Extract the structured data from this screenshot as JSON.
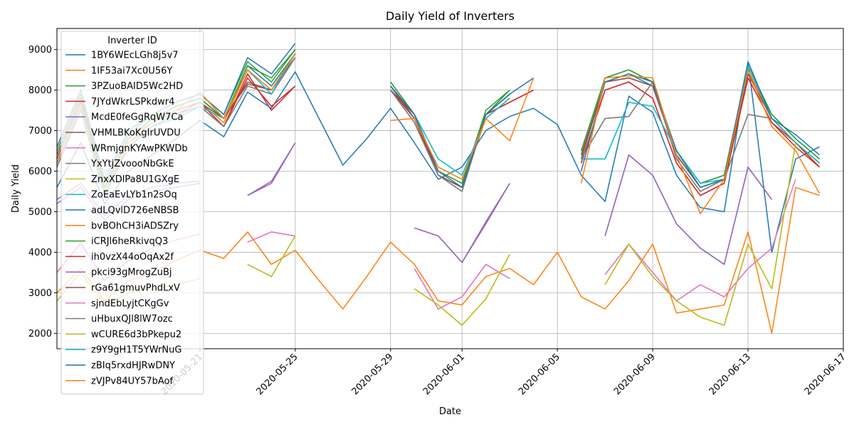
{
  "chart_data": {
    "type": "line",
    "title": "Daily Yield of Inverters",
    "xlabel": "Date",
    "ylabel": "Daily Yield",
    "xlim": [
      "2020-05-15",
      "2020-06-17"
    ],
    "ylim": [
      1620,
      9520
    ],
    "xticks": [
      "2020-05-21",
      "2020-05-25",
      "2020-05-29",
      "2020-06-01",
      "2020-06-05",
      "2020-06-09",
      "2020-06-13",
      "2020-06-17"
    ],
    "yticks": [
      2000,
      3000,
      4000,
      5000,
      6000,
      7000,
      8000,
      9000
    ],
    "grid": true,
    "legend_title": "Inverter ID",
    "legend_position": "upper-left",
    "colors": [
      "#1f77b4",
      "#ff7f0e",
      "#2ca02c",
      "#d62728",
      "#9467bd",
      "#8c564b",
      "#e377c2",
      "#7f7f7f",
      "#bcbd22",
      "#17becf"
    ],
    "dates": [
      "2020-05-15",
      "2020-05-16",
      "2020-05-17",
      "2020-05-18",
      "2020-05-19",
      "2020-05-20",
      "2020-05-21",
      "2020-05-22",
      "2020-05-23",
      "2020-05-24",
      "2020-05-25",
      "2020-05-26",
      "2020-05-27",
      "2020-05-28",
      "2020-05-29",
      "2020-05-30",
      "2020-05-31",
      "2020-06-01",
      "2020-06-02",
      "2020-06-03",
      "2020-06-04",
      "2020-06-05",
      "2020-06-06",
      "2020-06-07",
      "2020-06-08",
      "2020-06-09",
      "2020-06-10",
      "2020-06-11",
      "2020-06-12",
      "2020-06-13",
      "2020-06-14",
      "2020-06-15",
      "2020-06-16"
    ],
    "series": [
      {
        "name": "1BY6WEcLGh8j5v7",
        "values": [
          6400,
          7800,
          5600,
          6800,
          7300,
          7600,
          7800,
          7300,
          8600,
          8100,
          8900,
          null,
          6700,
          null,
          8100,
          7300,
          5900,
          5600,
          7400,
          7900,
          null,
          null,
          6400,
          8200,
          8400,
          8100,
          6400,
          5600,
          5800,
          8500,
          7300,
          6700,
          6200
        ]
      },
      {
        "name": "1IF53ai7Xc0U56Y",
        "values": [
          6300,
          7700,
          5500,
          6700,
          7200,
          7500,
          7700,
          7200,
          8500,
          8000,
          8800,
          null,
          6600,
          null,
          8000,
          7200,
          5900,
          5600,
          7300,
          7800,
          null,
          null,
          6300,
          8200,
          8400,
          8200,
          6300,
          5500,
          5800,
          8500,
          7300,
          6700,
          6100
        ]
      },
      {
        "name": "3PZuoBAID5Wc2HD",
        "values": [
          6500,
          7900,
          5700,
          6900,
          7400,
          7700,
          7900,
          7400,
          8700,
          8200,
          9000,
          null,
          6800,
          null,
          8200,
          7400,
          6000,
          5700,
          7500,
          8000,
          null,
          null,
          6500,
          8300,
          8500,
          8200,
          6500,
          5700,
          5900,
          8600,
          7400,
          6800,
          6300
        ]
      },
      {
        "name": "7JYdWkrLSPkdwr4",
        "values": [
          6200,
          7600,
          5400,
          6600,
          7100,
          7400,
          7600,
          7100,
          8400,
          7500,
          8100,
          null,
          6600,
          null,
          8000,
          7400,
          5900,
          5600,
          7400,
          7700,
          8000,
          null,
          6200,
          8000,
          8200,
          7800,
          6200,
          5400,
          5700,
          8300,
          7200,
          6600,
          6100
        ]
      },
      {
        "name": "McdE0feGgRqW7Ca",
        "values": [
          5200,
          5600,
          4800,
          5300,
          5500,
          5600,
          5700,
          null,
          5400,
          5750,
          6700,
          null,
          null,
          null,
          null,
          4600,
          4400,
          3750,
          4750,
          5700,
          null,
          null,
          null,
          4400,
          6400,
          5900,
          4700,
          4100,
          3700,
          6100,
          5300,
          null,
          null
        ]
      },
      {
        "name": "VHMLBKoKgIrUVDU",
        "values": [
          6300,
          7700,
          5600,
          6800,
          7300,
          7600,
          7800,
          7300,
          8200,
          8000,
          8900,
          null,
          6700,
          null,
          8100,
          7300,
          5900,
          5600,
          7400,
          7900,
          null,
          null,
          6400,
          8200,
          8300,
          8100,
          6400,
          5600,
          5800,
          8400,
          7300,
          6700,
          6200
        ]
      },
      {
        "name": "WRmjgnKYAwPKWDb",
        "values": [
          3500,
          4200,
          3300,
          3800,
          4100,
          4300,
          4450,
          null,
          4250,
          4500,
          4400,
          null,
          null,
          null,
          null,
          3600,
          2600,
          2900,
          3700,
          3350,
          null,
          null,
          null,
          3450,
          4200,
          3500,
          2800,
          3200,
          2900,
          3600,
          4100,
          null,
          null
        ]
      },
      {
        "name": "YxYtjZvoooNbGkE",
        "values": [
          6100,
          7500,
          5400,
          6600,
          7100,
          7400,
          7600,
          7100,
          8100,
          7900,
          8800,
          null,
          6600,
          null,
          8000,
          7200,
          5900,
          5500,
          7400,
          7900,
          null,
          null,
          6300,
          7300,
          7350,
          8200,
          6300,
          5500,
          5800,
          7400,
          7300,
          6700,
          6200
        ]
      },
      {
        "name": "ZnxXDlPa8U1GXgE",
        "values": [
          2800,
          3500,
          2700,
          3000,
          3100,
          3200,
          3350,
          null,
          3700,
          3400,
          4400,
          null,
          null,
          null,
          null,
          3100,
          2700,
          2200,
          2850,
          3950,
          null,
          null,
          null,
          3200,
          4200,
          3400,
          2800,
          2400,
          2200,
          4200,
          3100,
          6700,
          null
        ]
      },
      {
        "name": "ZoEaEvLYb1n2sOq",
        "values": [
          6200,
          7500,
          5400,
          6700,
          7100,
          7300,
          7600,
          7300,
          8500,
          7900,
          8900,
          null,
          6700,
          null,
          8100,
          7400,
          6300,
          5900,
          7300,
          7800,
          null,
          null,
          6300,
          6300,
          7700,
          7600,
          6500,
          5700,
          5800,
          8600,
          7300,
          6700,
          6200
        ]
      },
      {
        "name": "adLQvlD726eNBSB",
        "values": [
          5600,
          6700,
          5200,
          6000,
          6400,
          6800,
          7250,
          6850,
          7950,
          7550,
          8450,
          7300,
          6150,
          6800,
          7550,
          6700,
          5800,
          6100,
          7000,
          7350,
          7550,
          7150,
          5900,
          5250,
          7850,
          7450,
          5900,
          5100,
          5000,
          8700,
          4000,
          6300,
          6600
        ]
      },
      {
        "name": "bvBOhCH3iADSZry",
        "values": [
          3000,
          3600,
          2800,
          3300,
          3500,
          3800,
          4050,
          3850,
          4500,
          3700,
          4050,
          3300,
          2600,
          3400,
          4250,
          3700,
          2800,
          2700,
          3400,
          3600,
          3200,
          4000,
          2900,
          2600,
          3300,
          4200,
          2500,
          2600,
          2700,
          4500,
          2000,
          5600,
          5400
        ]
      },
      {
        "name": "iCRJl6heRkivqQ3",
        "values": [
          6400,
          7800,
          5600,
          6800,
          7300,
          7600,
          7800,
          7300,
          8600,
          8300,
          9000,
          null,
          6700,
          null,
          8200,
          7400,
          6000,
          5700,
          7400,
          8000,
          null,
          null,
          6500,
          8300,
          8500,
          8200,
          6500,
          5700,
          5900,
          8600,
          7400,
          6800,
          6300
        ]
      },
      {
        "name": "ih0vzX44oOqAx2f",
        "values": [
          6200,
          7500,
          5400,
          6600,
          7100,
          7400,
          7700,
          7100,
          8300,
          7600,
          8100,
          null,
          6600,
          null,
          8000,
          7400,
          5900,
          5600,
          7400,
          7700,
          8000,
          null,
          6200,
          8000,
          8200,
          7800,
          6200,
          5400,
          5700,
          8300,
          7200,
          6700,
          6100
        ]
      },
      {
        "name": "pkci93gMrogZuBj",
        "values": [
          5300,
          5700,
          4900,
          5400,
          5600,
          5700,
          5750,
          null,
          5400,
          5700,
          6700,
          null,
          null,
          null,
          null,
          4600,
          4400,
          3750,
          4700,
          5700,
          null,
          null,
          null,
          4400,
          6400,
          5900,
          4700,
          4100,
          3700,
          6100,
          5300,
          null,
          null
        ]
      },
      {
        "name": "rGa61gmuvPhdLxV",
        "values": [
          6400,
          7800,
          5600,
          6800,
          7200,
          7500,
          7700,
          7300,
          8150,
          8000,
          8800,
          null,
          6600,
          null,
          8000,
          7300,
          5900,
          5600,
          7400,
          7900,
          null,
          null,
          6300,
          8200,
          8300,
          8100,
          6400,
          5600,
          5800,
          8400,
          7300,
          6700,
          6200
        ]
      },
      {
        "name": "sjndEbLyjtCKgGv",
        "values": [
          3500,
          4250,
          3300,
          3800,
          4100,
          4300,
          4450,
          null,
          4250,
          4500,
          4400,
          null,
          null,
          null,
          null,
          3600,
          2600,
          2900,
          3700,
          3350,
          null,
          null,
          null,
          3450,
          4200,
          3500,
          2800,
          3200,
          2900,
          3600,
          4100,
          5800,
          null
        ]
      },
      {
        "name": "uHbuxQJl8lW7ozc",
        "values": [
          6100,
          7500,
          5400,
          6600,
          7100,
          7400,
          7600,
          7100,
          8100,
          7900,
          8800,
          null,
          6600,
          null,
          8000,
          7200,
          5900,
          5500,
          7400,
          7900,
          null,
          null,
          6300,
          7300,
          7350,
          8200,
          6300,
          5500,
          5800,
          7400,
          7300,
          6700,
          6200
        ]
      },
      {
        "name": "wCURE6d3bPkepu2",
        "values": [
          2800,
          3500,
          2700,
          3000,
          3100,
          3200,
          3350,
          null,
          3700,
          3400,
          4400,
          null,
          null,
          null,
          null,
          3100,
          2700,
          2200,
          2850,
          3950,
          null,
          null,
          null,
          3200,
          4200,
          3400,
          2800,
          2400,
          2200,
          4200,
          3100,
          6700,
          null
        ]
      },
      {
        "name": "z9Y9gH1T5YWrNuG",
        "values": [
          6200,
          7500,
          5400,
          6700,
          7100,
          7300,
          7600,
          7300,
          8500,
          7900,
          8900,
          null,
          6700,
          null,
          8100,
          7400,
          6300,
          5900,
          7300,
          7800,
          null,
          null,
          6300,
          6300,
          7700,
          7600,
          6500,
          5700,
          5800,
          8600,
          7300,
          6700,
          6200
        ]
      },
      {
        "name": "zBIq5rxdHJRwDNY",
        "values": [
          6600,
          8000,
          5800,
          7000,
          7400,
          7700,
          7900,
          7400,
          8800,
          8400,
          9150,
          null,
          6700,
          null,
          8100,
          7400,
          6000,
          5600,
          7400,
          7900,
          8300,
          null,
          6000,
          8200,
          8400,
          8200,
          6500,
          5600,
          5800,
          8700,
          7300,
          6900,
          6400
        ]
      },
      {
        "name": "zVJPv84UY57bAof",
        "values": [
          6200,
          7600,
          5500,
          6700,
          7200,
          7500,
          7950,
          7300,
          8500,
          8000,
          8900,
          null,
          6000,
          null,
          7250,
          7300,
          6100,
          5800,
          7300,
          6750,
          8300,
          null,
          5700,
          8300,
          8350,
          8300,
          6400,
          4950,
          5800,
          8500,
          7100,
          6500,
          5450
        ]
      }
    ]
  }
}
